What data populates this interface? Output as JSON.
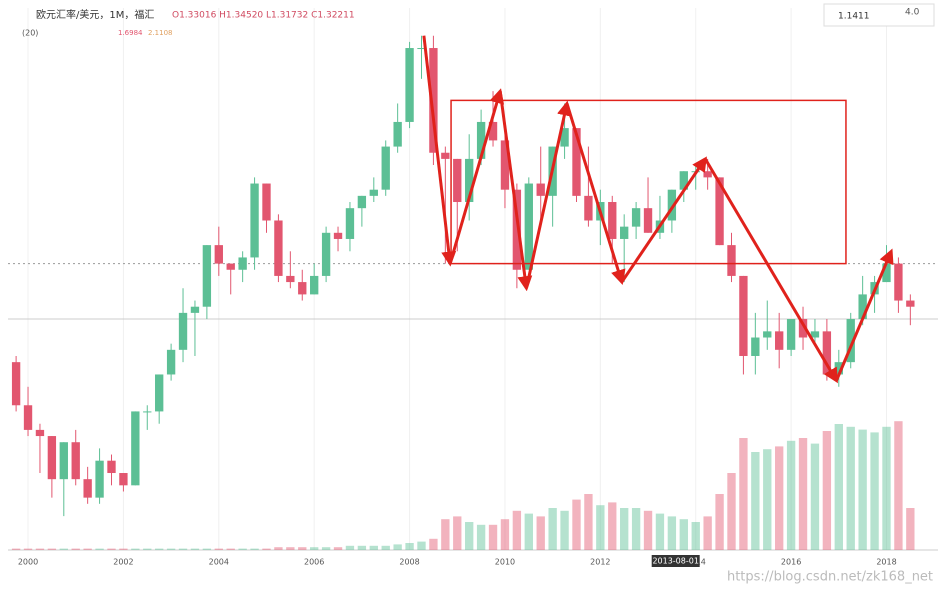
{
  "chart_data": {
    "type": "candlestick",
    "title": "欧元汇率/美元，1M，福汇",
    "subtitle": "O1.33016 H1.34520 L1.31732 C1.32211",
    "indicator": {
      "name": "(20)",
      "values": [
        "1.6984",
        "2.1108"
      ]
    },
    "top_right": [
      "1.1411",
      "4.0"
    ],
    "x": [
      1999.75,
      2000,
      2000.25,
      2000.5,
      2000.75,
      2001,
      2001.25,
      2001.5,
      2001.75,
      2002,
      2002.25,
      2002.5,
      2002.75,
      2003,
      2003.25,
      2003.5,
      2003.75,
      2004,
      2004.25,
      2004.5,
      2004.75,
      2005,
      2005.25,
      2005.5,
      2005.75,
      2006,
      2006.25,
      2006.5,
      2006.75,
      2007,
      2007.25,
      2007.5,
      2007.75,
      2008,
      2008.25,
      2008.5,
      2008.75,
      2009,
      2009.25,
      2009.5,
      2009.75,
      2010,
      2010.25,
      2010.5,
      2010.75,
      2011,
      2011.25,
      2011.5,
      2011.75,
      2012,
      2012.25,
      2012.5,
      2012.75,
      2013,
      2013.25,
      2013.5,
      2013.75,
      2014,
      2014.25,
      2014.5,
      2014.75,
      2015,
      2015.25,
      2015.5,
      2015.75,
      2016,
      2016.25,
      2016.5,
      2016.75,
      2017,
      2017.25,
      2017.5,
      2017.75,
      2018,
      2018.25,
      2018.5
    ],
    "open": [
      1.07,
      1.0,
      0.96,
      0.95,
      0.88,
      0.94,
      0.88,
      0.85,
      0.91,
      0.89,
      0.87,
      0.99,
      0.99,
      1.05,
      1.09,
      1.15,
      1.16,
      1.26,
      1.23,
      1.22,
      1.24,
      1.36,
      1.3,
      1.21,
      1.2,
      1.18,
      1.21,
      1.28,
      1.27,
      1.32,
      1.34,
      1.35,
      1.42,
      1.46,
      1.58,
      1.58,
      1.41,
      1.4,
      1.33,
      1.4,
      1.46,
      1.43,
      1.35,
      1.22,
      1.36,
      1.34,
      1.42,
      1.45,
      1.34,
      1.3,
      1.33,
      1.27,
      1.29,
      1.32,
      1.28,
      1.3,
      1.35,
      1.38,
      1.38,
      1.37,
      1.26,
      1.21,
      1.08,
      1.11,
      1.12,
      1.09,
      1.14,
      1.11,
      1.12,
      1.05,
      1.07,
      1.14,
      1.18,
      1.2,
      1.23,
      1.17
    ],
    "high": [
      1.08,
      1.03,
      0.97,
      0.95,
      0.94,
      0.96,
      0.9,
      0.93,
      0.92,
      0.89,
      0.99,
      1.0,
      1.05,
      1.1,
      1.19,
      1.17,
      1.26,
      1.29,
      1.23,
      1.25,
      1.37,
      1.36,
      1.31,
      1.25,
      1.22,
      1.23,
      1.29,
      1.29,
      1.33,
      1.34,
      1.37,
      1.43,
      1.49,
      1.59,
      1.6,
      1.6,
      1.42,
      1.4,
      1.44,
      1.48,
      1.51,
      1.45,
      1.36,
      1.37,
      1.42,
      1.42,
      1.49,
      1.45,
      1.42,
      1.35,
      1.34,
      1.31,
      1.33,
      1.37,
      1.34,
      1.35,
      1.38,
      1.39,
      1.4,
      1.37,
      1.28,
      1.21,
      1.15,
      1.17,
      1.15,
      1.14,
      1.16,
      1.14,
      1.14,
      1.09,
      1.15,
      1.21,
      1.21,
      1.26,
      1.24,
      1.18
    ],
    "low": [
      0.99,
      0.95,
      0.89,
      0.85,
      0.82,
      0.87,
      0.84,
      0.84,
      0.87,
      0.86,
      0.87,
      0.96,
      0.97,
      1.04,
      1.07,
      1.08,
      1.14,
      1.21,
      1.18,
      1.2,
      1.22,
      1.28,
      1.2,
      1.19,
      1.17,
      1.18,
      1.2,
      1.25,
      1.25,
      1.29,
      1.33,
      1.34,
      1.41,
      1.45,
      1.53,
      1.39,
      1.23,
      1.25,
      1.3,
      1.39,
      1.42,
      1.32,
      1.19,
      1.22,
      1.29,
      1.29,
      1.4,
      1.33,
      1.29,
      1.26,
      1.23,
      1.2,
      1.27,
      1.28,
      1.27,
      1.28,
      1.33,
      1.35,
      1.35,
      1.26,
      1.2,
      1.05,
      1.05,
      1.09,
      1.06,
      1.08,
      1.09,
      1.1,
      1.04,
      1.03,
      1.06,
      1.13,
      1.15,
      1.2,
      1.15,
      1.13
    ],
    "close": [
      1.0,
      0.96,
      0.95,
      0.88,
      0.94,
      0.88,
      0.85,
      0.91,
      0.89,
      0.87,
      0.99,
      0.99,
      1.05,
      1.09,
      1.15,
      1.16,
      1.26,
      1.23,
      1.22,
      1.24,
      1.36,
      1.3,
      1.21,
      1.2,
      1.18,
      1.21,
      1.28,
      1.27,
      1.32,
      1.34,
      1.35,
      1.42,
      1.46,
      1.58,
      1.58,
      1.41,
      1.4,
      1.33,
      1.4,
      1.46,
      1.43,
      1.35,
      1.22,
      1.36,
      1.34,
      1.42,
      1.45,
      1.34,
      1.3,
      1.33,
      1.27,
      1.29,
      1.32,
      1.28,
      1.3,
      1.35,
      1.38,
      1.38,
      1.37,
      1.26,
      1.21,
      1.08,
      1.11,
      1.12,
      1.09,
      1.14,
      1.11,
      1.12,
      1.05,
      1.07,
      1.14,
      1.18,
      1.2,
      1.23,
      1.17,
      1.16
    ],
    "volume": [
      1,
      1,
      1,
      1,
      1,
      1,
      1,
      1,
      1,
      1,
      1,
      1,
      1,
      1,
      1,
      1,
      1,
      1,
      1,
      1,
      1,
      1,
      2,
      2,
      2,
      2,
      2,
      2,
      3,
      3,
      3,
      3,
      4,
      5,
      6,
      8,
      22,
      24,
      20,
      18,
      18,
      22,
      28,
      26,
      24,
      30,
      28,
      36,
      40,
      32,
      34,
      30,
      30,
      28,
      26,
      24,
      22,
      20,
      24,
      40,
      55,
      80,
      70,
      72,
      74,
      78,
      80,
      76,
      85,
      90,
      88,
      86,
      84,
      88,
      92,
      30
    ],
    "volume_lim": [
      0,
      100
    ],
    "xlim": [
      1999.58,
      2019.08
    ],
    "ylim": [
      0.765,
      1.645
    ],
    "xticks": [
      2000,
      2002,
      2004,
      2006,
      2008,
      2010,
      2012,
      2014,
      2016,
      2018
    ],
    "cursor": {
      "value": 2013.58,
      "label": "2013-08-01"
    },
    "price_lines": [
      1.14,
      1.23
    ],
    "box": {
      "x": [
        2008.87,
        2017.15
      ],
      "y": [
        1.23,
        1.495
      ]
    },
    "zigzag": {
      "x": [
        2008.3,
        2008.85,
        2009.9,
        2010.45,
        2011.3,
        2012.45,
        2014.2,
        2016.95,
        2018.1
      ],
      "y": [
        1.6,
        1.23,
        1.51,
        1.19,
        1.49,
        1.2,
        1.4,
        1.04,
        1.25
      ]
    },
    "up_color": "#5cbf95",
    "down_color": "#e2566f",
    "annotation_color": "#e0221c",
    "grid": true,
    "watermark": "https://blog.csdn.net/zk168_net"
  }
}
